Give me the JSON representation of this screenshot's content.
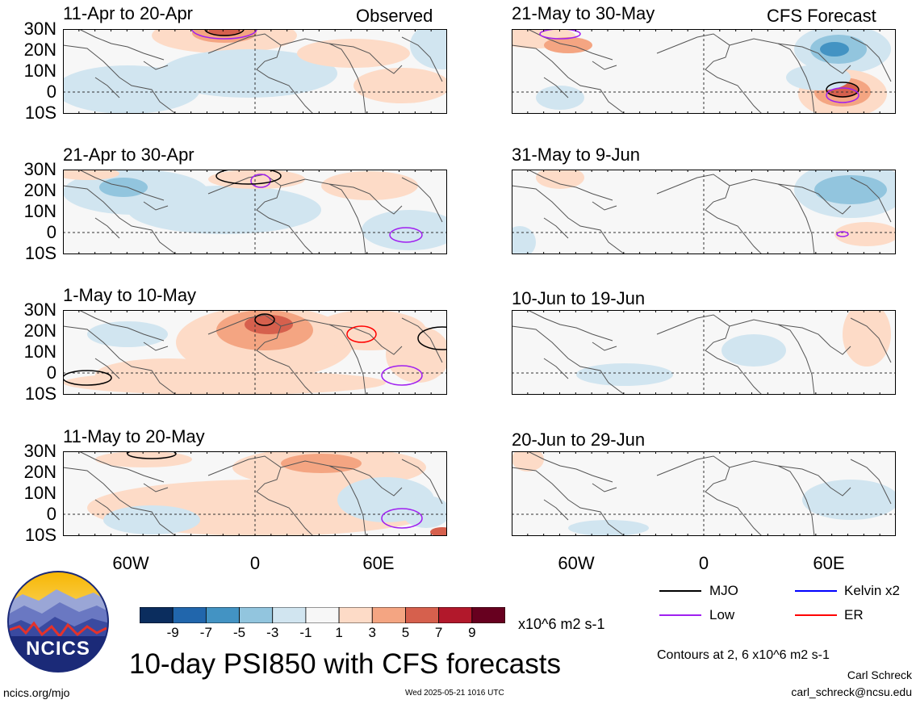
{
  "header": {
    "observed_label": "Observed",
    "forecast_label": "CFS Forecast"
  },
  "panels": [
    {
      "title": "11-Apr to 20-Apr"
    },
    {
      "title": "21-Apr to 30-Apr"
    },
    {
      "title": "1-May to 10-May"
    },
    {
      "title": "11-May to 20-May"
    },
    {
      "title": "21-May to 30-May"
    },
    {
      "title": "31-May to 9-Jun"
    },
    {
      "title": "10-Jun to 19-Jun"
    },
    {
      "title": "20-Jun to 29-Jun"
    }
  ],
  "y_labels": [
    "30N",
    "20N",
    "10N",
    "0",
    "10S"
  ],
  "x_labels": [
    "60W",
    "0",
    "60E"
  ],
  "colorbar": {
    "ticks": [
      "-9",
      "-7",
      "-5",
      "-3",
      "-1",
      "1",
      "3",
      "5",
      "7",
      "9"
    ],
    "colors": [
      "#0b2d5e",
      "#2166ac",
      "#4393c3",
      "#92c5de",
      "#d1e5f0",
      "#f7f7f7",
      "#fddbc7",
      "#f4a582",
      "#d6604d",
      "#b2182b",
      "#67001f"
    ],
    "units": "x10^6 m2 s-1"
  },
  "legend": {
    "items": [
      {
        "label": "MJO",
        "color": "#000000"
      },
      {
        "label": "Kelvin x2",
        "color": "#0000ff"
      },
      {
        "label": "Low",
        "color": "#a020f0"
      },
      {
        "label": "ER",
        "color": "#ff0000"
      }
    ]
  },
  "footer": {
    "title": "10-day PSI850 with CFS forecasts",
    "contours_note": "Contours at 2, 6 x10^6 m2 s-1",
    "author": "Carl Schreck",
    "email": "carl_schreck@ncsu.edu",
    "url": "ncics.org/mjo",
    "timestamp": "Wed 2025-05-21 1016 UTC",
    "logo_text": "NCICS"
  }
}
